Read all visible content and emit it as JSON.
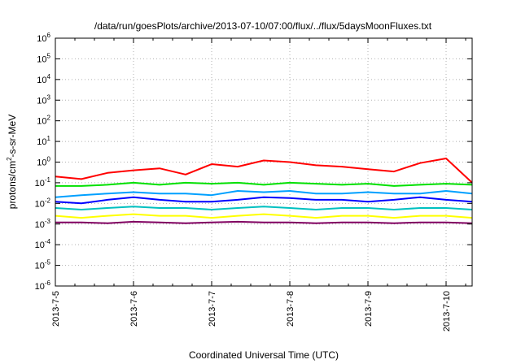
{
  "chart_data": {
    "type": "line",
    "title": "/data/run/goesPlots/archive/2013-07-10/07:00/flux/../flux/5daysMoonFluxes.txt",
    "xlabel": "Coordinated Universal Time (UTC)",
    "ylabel": "protons/cm2-s-sr-MeV",
    "ylabel_parts": {
      "prefix": "protons/cm",
      "sup": "2",
      "suffix": "-s-sr-MeV"
    },
    "yscale": "log",
    "ylim": [
      1e-06,
      1000000.0
    ],
    "yticks": [
      {
        "value": 1e-06,
        "base": "10",
        "exp": "-6"
      },
      {
        "value": 1e-05,
        "base": "10",
        "exp": "-5"
      },
      {
        "value": 0.0001,
        "base": "10",
        "exp": "-4"
      },
      {
        "value": 0.001,
        "base": "10",
        "exp": "-3"
      },
      {
        "value": 0.01,
        "base": "10",
        "exp": "-2"
      },
      {
        "value": 0.1,
        "base": "10",
        "exp": "-1"
      },
      {
        "value": 1.0,
        "base": "10",
        "exp": "0"
      },
      {
        "value": 10.0,
        "base": "10",
        "exp": "1"
      },
      {
        "value": 100.0,
        "base": "10",
        "exp": "2"
      },
      {
        "value": 1000.0,
        "base": "10",
        "exp": "3"
      },
      {
        "value": 10000.0,
        "base": "10",
        "exp": "4"
      },
      {
        "value": 100000.0,
        "base": "10",
        "exp": "5"
      },
      {
        "value": 1000000.0,
        "base": "10",
        "exp": "6"
      }
    ],
    "xlim": [
      "2013-07-05T00:00",
      "2013-07-10T08:00"
    ],
    "xticks": [
      {
        "value": "2013-07-05T00:00",
        "label": "2013-7-5"
      },
      {
        "value": "2013-07-06T00:00",
        "label": "2013-7-6"
      },
      {
        "value": "2013-07-07T00:00",
        "label": "2013-7-7"
      },
      {
        "value": "2013-07-08T00:00",
        "label": "2013-7-8"
      },
      {
        "value": "2013-07-09T00:00",
        "label": "2013-7-9"
      },
      {
        "value": "2013-07-10T00:00",
        "label": "2013-7-10"
      }
    ],
    "grid": true,
    "x": [
      "2013-07-05T00:00",
      "2013-07-05T08:00",
      "2013-07-05T16:00",
      "2013-07-06T00:00",
      "2013-07-06T08:00",
      "2013-07-06T16:00",
      "2013-07-07T00:00",
      "2013-07-07T08:00",
      "2013-07-07T16:00",
      "2013-07-08T00:00",
      "2013-07-08T08:00",
      "2013-07-08T16:00",
      "2013-07-09T00:00",
      "2013-07-09T08:00",
      "2013-07-09T16:00",
      "2013-07-10T00:00",
      "2013-07-10T08:00"
    ],
    "series": [
      {
        "color": "#ff0000",
        "values": [
          0.2,
          0.15,
          0.3,
          0.4,
          0.5,
          0.25,
          0.8,
          0.6,
          1.2,
          1.0,
          0.7,
          0.6,
          0.45,
          0.35,
          0.9,
          1.5,
          0.1
        ]
      },
      {
        "color": "#00e000",
        "values": [
          0.07,
          0.07,
          0.08,
          0.1,
          0.08,
          0.1,
          0.09,
          0.1,
          0.08,
          0.1,
          0.09,
          0.08,
          0.09,
          0.07,
          0.08,
          0.09,
          0.08
        ]
      },
      {
        "color": "#00a0ff",
        "values": [
          0.02,
          0.025,
          0.03,
          0.035,
          0.03,
          0.03,
          0.025,
          0.04,
          0.035,
          0.04,
          0.03,
          0.03,
          0.035,
          0.03,
          0.03,
          0.04,
          0.03
        ]
      },
      {
        "color": "#0000ff",
        "values": [
          0.012,
          0.01,
          0.015,
          0.02,
          0.015,
          0.012,
          0.012,
          0.015,
          0.02,
          0.018,
          0.015,
          0.015,
          0.012,
          0.015,
          0.02,
          0.015,
          0.012
        ]
      },
      {
        "color": "#00c0c0",
        "values": [
          0.006,
          0.005,
          0.006,
          0.007,
          0.006,
          0.006,
          0.005,
          0.006,
          0.007,
          0.006,
          0.005,
          0.006,
          0.006,
          0.005,
          0.006,
          0.006,
          0.005
        ]
      },
      {
        "color": "#ffff00",
        "values": [
          0.0025,
          0.002,
          0.0025,
          0.003,
          0.0025,
          0.0025,
          0.002,
          0.0025,
          0.003,
          0.0025,
          0.002,
          0.0025,
          0.0025,
          0.002,
          0.0025,
          0.0025,
          0.002
        ]
      },
      {
        "color": "#800060",
        "values": [
          0.0012,
          0.0012,
          0.0011,
          0.0013,
          0.0012,
          0.0011,
          0.0012,
          0.0013,
          0.0012,
          0.0012,
          0.0011,
          0.0012,
          0.0012,
          0.0011,
          0.0012,
          0.0012,
          0.0011
        ]
      }
    ]
  }
}
